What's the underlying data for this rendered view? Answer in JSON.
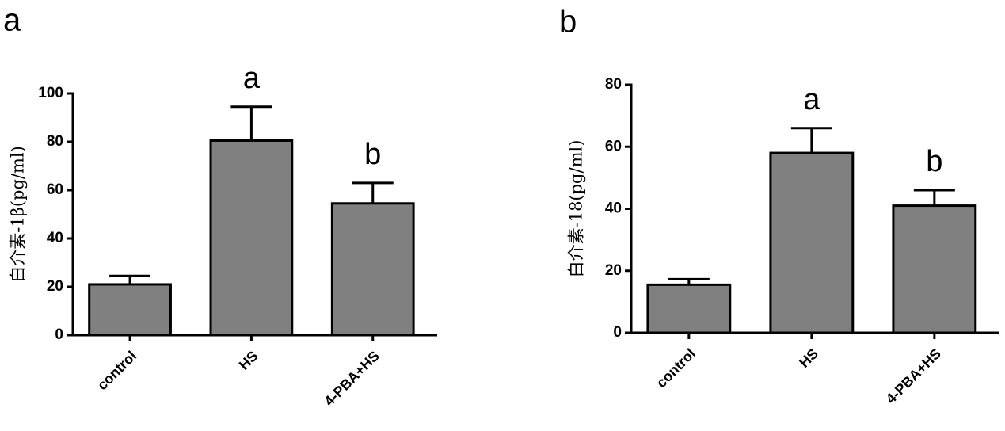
{
  "chart_data": [
    {
      "type": "bar",
      "panel_label": "a",
      "ylabel": "白介素-1β(pg/ml)",
      "categories": [
        "control",
        "HS",
        "4-PBA+HS"
      ],
      "values": [
        21,
        80.5,
        54.5
      ],
      "errors": [
        3.5,
        14,
        8.5
      ],
      "bar_labels": [
        null,
        "a",
        "b"
      ],
      "color": "#808080",
      "ylim": [
        0,
        100
      ],
      "yticks": [
        0,
        20,
        40,
        60,
        80,
        100
      ]
    },
    {
      "type": "bar",
      "panel_label": "b",
      "ylabel": "白介素-18(pg/ml)",
      "categories": [
        "control",
        "HS",
        "4-PBA+HS"
      ],
      "values": [
        15.5,
        58,
        41
      ],
      "errors": [
        1.8,
        8,
        5
      ],
      "bar_labels": [
        null,
        "a",
        "b"
      ],
      "color": "#808080",
      "ylim": [
        0,
        80
      ],
      "yticks": [
        0,
        20,
        40,
        60,
        80
      ]
    }
  ]
}
